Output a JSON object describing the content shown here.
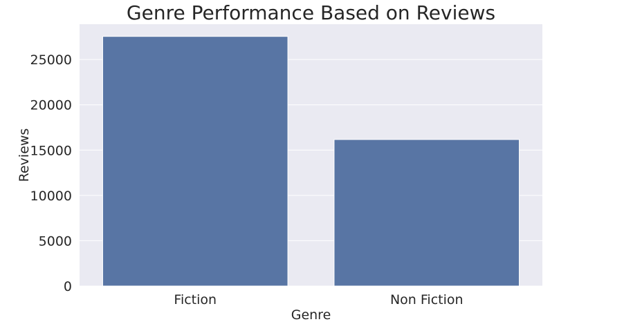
{
  "chart_data": {
    "type": "bar",
    "title": "Genre Performance Based on Reviews",
    "xlabel": "Genre",
    "ylabel": "Reviews",
    "categories": [
      "Fiction",
      "Non Fiction"
    ],
    "values": [
      27550,
      16170
    ],
    "ylim": [
      0,
      28900
    ],
    "yticks": [
      0,
      5000,
      10000,
      15000,
      20000,
      25000
    ],
    "ytick_labels": [
      "0",
      "5000",
      "10000",
      "15000",
      "20000",
      "25000"
    ],
    "grid": true,
    "legend": "none",
    "colors": {
      "bar": "#5875a4",
      "bar_edge": "#ffffff",
      "plot_background": "#eaeaf2",
      "grid": "#ffffff",
      "text": "#262626"
    }
  }
}
